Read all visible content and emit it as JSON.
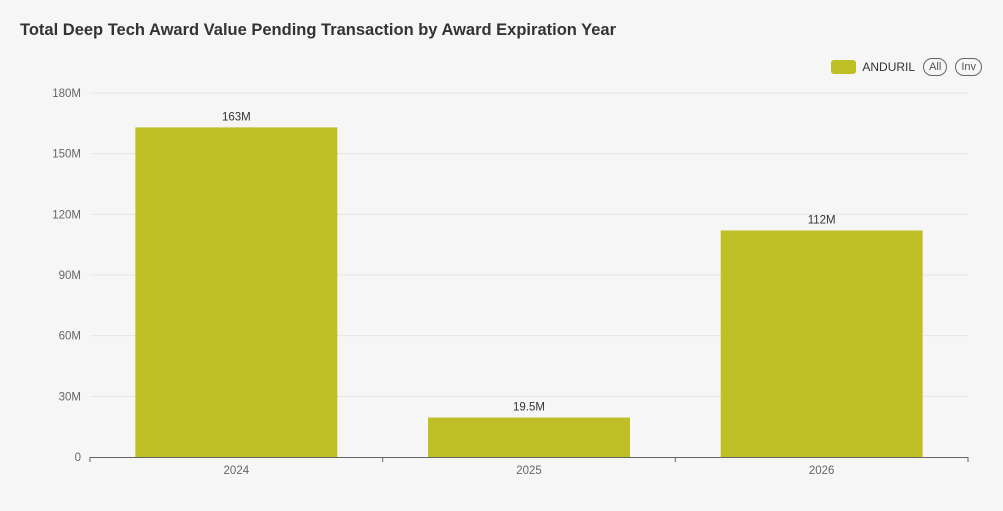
{
  "title": "Total Deep Tech Award Value Pending Transaction by Award Expiration Year",
  "legend": {
    "series_label": "ANDURIL",
    "all_label": "All",
    "inv_label": "Inv"
  },
  "colors": {
    "bar": "#bdbf24",
    "grid": "#e6e6e6",
    "axis": "#666666"
  },
  "chart_data": {
    "type": "bar",
    "title": "Total Deep Tech Award Value Pending Transaction by Award Expiration Year",
    "categories": [
      "2024",
      "2025",
      "2026"
    ],
    "series": [
      {
        "name": "ANDURIL",
        "values": [
          163000000,
          19500000,
          112000000
        ]
      }
    ],
    "data_labels": [
      "163M",
      "19.5M",
      "112M"
    ],
    "ylim": [
      0,
      180000000
    ],
    "yticks": [
      0,
      30000000,
      60000000,
      90000000,
      120000000,
      150000000,
      180000000
    ],
    "ytick_labels": [
      "0",
      "30M",
      "60M",
      "90M",
      "120M",
      "150M",
      "180M"
    ],
    "xlabel": "",
    "ylabel": "",
    "grid": true,
    "legend_position": "top-right"
  }
}
